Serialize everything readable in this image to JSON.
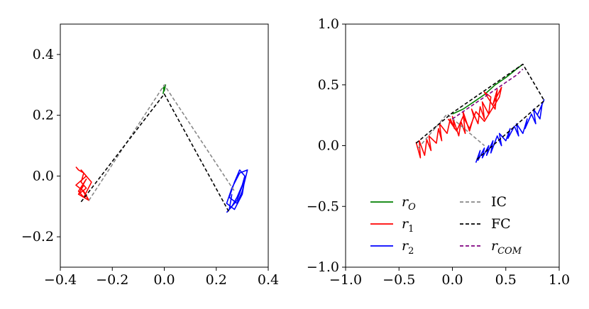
{
  "chart_data": [
    {
      "type": "line",
      "title": "",
      "xlabel": "",
      "ylabel": "",
      "xlim": [
        -0.4,
        0.4
      ],
      "ylim": [
        -0.3,
        0.5
      ],
      "xticks": [
        "−0.4",
        "−0.2",
        "0.0",
        "0.2",
        "0.4"
      ],
      "xtick_values": [
        -0.4,
        -0.2,
        0.0,
        0.2,
        0.4
      ],
      "yticks": [
        "−0.2",
        "0.0",
        "0.2",
        "0.4"
      ],
      "ytick_values": [
        -0.2,
        0.0,
        0.2,
        0.4
      ],
      "grid": false,
      "series": [
        {
          "role": "r_O",
          "color": "#008000",
          "style": "solid",
          "x": [
            -0.005,
            0.0,
            0.005,
            0.0,
            -0.004,
            0.003
          ],
          "y": [
            0.27,
            0.29,
            0.3,
            0.28,
            0.29,
            0.295
          ]
        },
        {
          "role": "r_1",
          "color": "#ff0000",
          "style": "solid",
          "x": [
            -0.34,
            -0.33,
            -0.31,
            -0.32,
            -0.3,
            -0.33,
            -0.29,
            -0.31,
            -0.34,
            -0.3,
            -0.32,
            -0.28,
            -0.31,
            -0.33,
            -0.3,
            -0.32,
            -0.29,
            -0.33,
            -0.31
          ],
          "y": [
            0.03,
            0.02,
            0.01,
            -0.02,
            -0.04,
            -0.06,
            -0.08,
            -0.05,
            -0.03,
            0.0,
            0.02,
            -0.02,
            -0.07,
            -0.05,
            -0.01,
            -0.04,
            -0.08,
            -0.06,
            -0.03
          ]
        },
        {
          "role": "r_2",
          "color": "#0000ff",
          "style": "solid",
          "x": [
            0.24,
            0.26,
            0.28,
            0.3,
            0.31,
            0.29,
            0.27,
            0.25,
            0.28,
            0.3,
            0.32,
            0.29,
            0.26,
            0.24,
            0.27,
            0.3,
            0.31,
            0.28,
            0.25,
            0.26
          ],
          "y": [
            -0.12,
            -0.1,
            -0.07,
            -0.03,
            0.0,
            0.02,
            -0.02,
            -0.07,
            -0.09,
            -0.05,
            0.02,
            0.01,
            -0.04,
            -0.09,
            -0.11,
            -0.06,
            -0.01,
            -0.08,
            -0.11,
            -0.06
          ]
        },
        {
          "role": "IC",
          "color": "#888888",
          "style": "dashed",
          "x": [
            -0.29,
            0.0,
            0.27
          ],
          "y": [
            -0.08,
            0.3,
            -0.05
          ]
        },
        {
          "role": "FC",
          "color": "#000000",
          "style": "dashed",
          "x": [
            -0.32,
            0.0,
            0.25
          ],
          "y": [
            -0.085,
            0.27,
            -0.12
          ]
        }
      ]
    },
    {
      "type": "line",
      "title": "",
      "xlabel": "",
      "ylabel": "",
      "xlim": [
        -1.0,
        1.0
      ],
      "ylim": [
        -1.0,
        1.0
      ],
      "xticks": [
        "−1.0",
        "−0.5",
        "0.0",
        "0.5",
        "1.0"
      ],
      "xtick_values": [
        -1.0,
        -0.5,
        0.0,
        0.5,
        1.0
      ],
      "yticks": [
        "−1.0",
        "−0.5",
        "0.0",
        "0.5",
        "1.0"
      ],
      "ytick_values": [
        -1.0,
        -0.5,
        0.0,
        0.5,
        1.0
      ],
      "grid": false,
      "legend_position": "lower-right",
      "series": [
        {
          "name": "r",
          "sub": "O",
          "color": "#008000",
          "style": "solid",
          "x": [
            0.0,
            0.1,
            0.2,
            0.3,
            0.4,
            0.5,
            0.6,
            0.66
          ],
          "y": [
            0.26,
            0.3,
            0.36,
            0.42,
            0.5,
            0.56,
            0.63,
            0.67
          ]
        },
        {
          "name": "r",
          "sub": "1",
          "color": "#ff0000",
          "style": "solid",
          "x": [
            -0.34,
            -0.3,
            -0.31,
            -0.26,
            -0.24,
            -0.2,
            -0.22,
            -0.15,
            -0.13,
            -0.1,
            -0.12,
            -0.05,
            -0.02,
            0.02,
            0.0,
            0.06,
            0.08,
            0.12,
            0.1,
            0.16,
            0.2,
            0.18,
            0.24,
            0.26,
            0.3,
            0.28,
            0.34,
            0.36,
            0.3,
            0.4,
            0.42,
            0.38,
            0.46,
            0.44,
            0.3,
            0.22,
            0.16,
            0.1,
            0.04,
            -0.04
          ],
          "y": [
            0.03,
            -0.1,
            0.04,
            -0.08,
            0.05,
            -0.04,
            0.08,
            0.02,
            0.14,
            0.04,
            0.18,
            0.1,
            0.22,
            0.14,
            0.24,
            0.08,
            0.2,
            0.1,
            0.28,
            0.12,
            0.24,
            0.3,
            0.18,
            0.32,
            0.22,
            0.36,
            0.26,
            0.4,
            0.44,
            0.3,
            0.46,
            0.34,
            0.48,
            0.4,
            0.2,
            0.28,
            0.14,
            0.24,
            0.12,
            0.22
          ]
        },
        {
          "name": "r",
          "sub": "2",
          "color": "#0000ff",
          "style": "solid",
          "x": [
            0.22,
            0.26,
            0.24,
            0.3,
            0.28,
            0.34,
            0.32,
            0.38,
            0.36,
            0.42,
            0.46,
            0.44,
            0.5,
            0.54,
            0.52,
            0.58,
            0.62,
            0.6,
            0.66,
            0.7,
            0.68,
            0.74,
            0.78,
            0.76,
            0.82,
            0.84,
            0.8,
            0.86
          ],
          "y": [
            -0.14,
            -0.04,
            -0.12,
            -0.02,
            -0.1,
            0.0,
            -0.08,
            0.04,
            -0.06,
            0.08,
            0.0,
            0.1,
            0.04,
            0.14,
            0.06,
            0.16,
            0.08,
            0.18,
            0.1,
            0.22,
            0.14,
            0.26,
            0.18,
            0.3,
            0.22,
            0.34,
            0.26,
            0.38
          ]
        },
        {
          "name": "IC",
          "color": "#888888",
          "style": "dashed",
          "x": [
            -0.32,
            -0.05,
            0.3
          ],
          "y": [
            -0.02,
            0.26,
            0.0
          ]
        },
        {
          "name": "FC",
          "color": "#000000",
          "style": "dashed",
          "x": [
            -0.34,
            0.0,
            0.66,
            0.86,
            0.22
          ],
          "y": [
            0.02,
            0.27,
            0.67,
            0.37,
            -0.12
          ]
        },
        {
          "name": "r",
          "sub": "COM",
          "color": "#800080",
          "style": "dashed",
          "x": [
            0.0,
            0.2,
            0.4,
            0.6,
            0.66
          ],
          "y": [
            0.22,
            0.34,
            0.46,
            0.58,
            0.63
          ]
        }
      ]
    }
  ]
}
